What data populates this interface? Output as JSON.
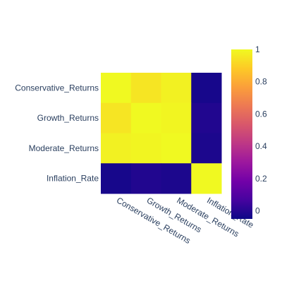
{
  "chart_data": {
    "type": "heatmap",
    "title": "",
    "x_categories": [
      "Conservative_Returns",
      "Growth_Returns",
      "Moderate_Returns",
      "Inflation_Rate"
    ],
    "y_categories": [
      "Conservative_Returns",
      "Growth_Returns",
      "Moderate_Returns",
      "Inflation_Rate"
    ],
    "z": [
      [
        1.0,
        0.95,
        0.98,
        -0.03
      ],
      [
        0.95,
        1.0,
        0.99,
        -0.01
      ],
      [
        0.98,
        0.99,
        1.0,
        -0.02
      ],
      [
        -0.03,
        -0.01,
        -0.02,
        1.0
      ]
    ],
    "zmin": -0.05,
    "zmax": 1.0,
    "colorscale": "plasma",
    "colorbar": {
      "ticks": [
        0,
        0.2,
        0.4,
        0.6,
        0.8,
        1
      ],
      "tick_labels": [
        "0",
        "0.2",
        "0.4",
        "0.6",
        "0.8",
        "1"
      ]
    },
    "grid": false
  }
}
